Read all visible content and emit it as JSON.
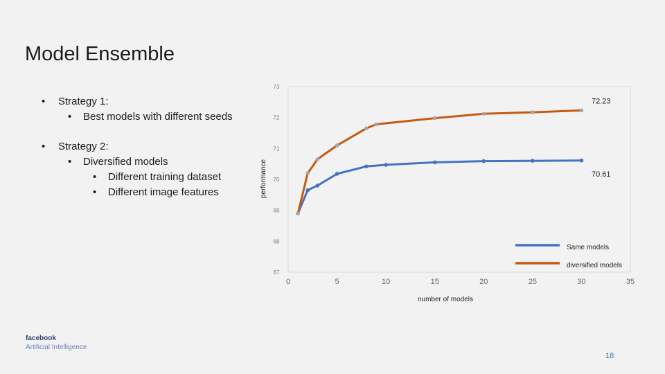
{
  "slide": {
    "title": "Model Ensemble",
    "page_number": "18",
    "logo_line1": "facebook",
    "logo_line2": "Artificial Intelligence"
  },
  "bullets": {
    "s1": "Strategy 1:",
    "s1_a": "Best models with different seeds",
    "s2": "Strategy 2:",
    "s2_a": "Diversified models",
    "s2_a_i": "Different training dataset",
    "s2_a_ii": "Different image features"
  },
  "chart_data": {
    "type": "line",
    "xlabel": "number of models",
    "ylabel": "performance",
    "xlim": [
      0,
      35
    ],
    "ylim": [
      67,
      73
    ],
    "xticks": [
      0,
      5,
      10,
      15,
      20,
      25,
      30,
      35
    ],
    "yticks": [
      67,
      68,
      69,
      70,
      71,
      72,
      73
    ],
    "legend_position": "bottom-right",
    "series": [
      {
        "name": "Same models",
        "color": "#4472c4",
        "x": [
          1,
          2,
          3,
          5,
          8,
          10,
          15,
          20,
          25,
          30
        ],
        "y": [
          68.9,
          69.65,
          69.8,
          70.18,
          70.42,
          70.47,
          70.55,
          70.59,
          70.6,
          70.61
        ]
      },
      {
        "name": "diversified models",
        "color": "#c55a11",
        "x": [
          1,
          2,
          3,
          5,
          8,
          9,
          15,
          20,
          25,
          30
        ],
        "y": [
          68.9,
          70.2,
          70.65,
          71.1,
          71.65,
          71.78,
          71.98,
          72.12,
          72.17,
          72.23
        ]
      }
    ],
    "annotations": [
      "72.23",
      "70.61"
    ]
  }
}
